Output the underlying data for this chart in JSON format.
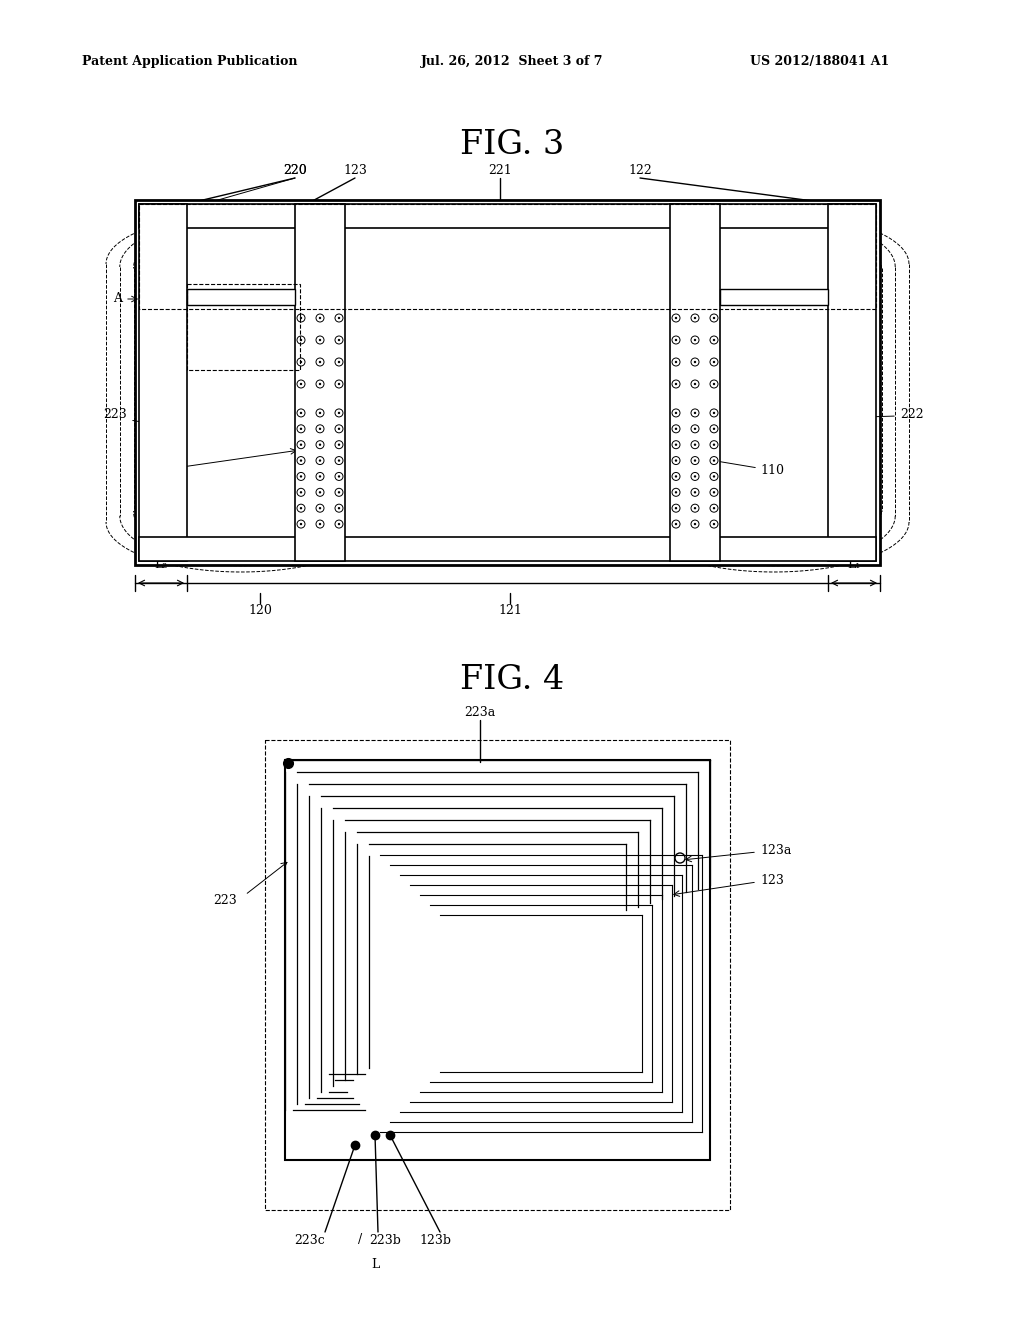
{
  "bg_color": "#ffffff",
  "header_left": "Patent Application Publication",
  "header_mid": "Jul. 26, 2012  Sheet 3 of 7",
  "header_right": "US 2012/188041 A1",
  "fig3_title": "FIG. 3",
  "fig4_title": "FIG. 4"
}
